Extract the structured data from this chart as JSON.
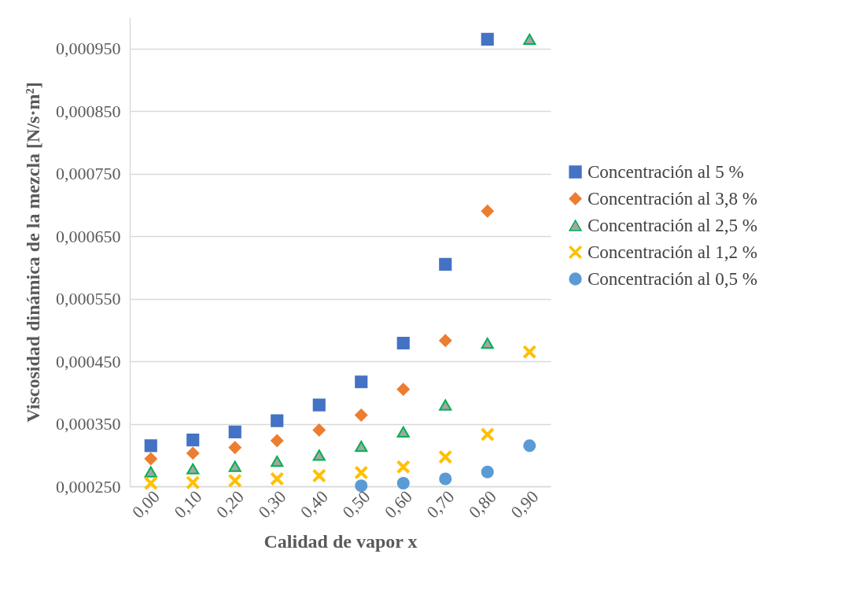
{
  "chart_data": {
    "type": "scatter",
    "xlabel": "Calidad de vapor x",
    "ylabel": "Viscosidad dinámica de la mezcla [N/s·m²]",
    "categories": [
      "0,00",
      "0,10",
      "0,20",
      "0,30",
      "0,40",
      "0,50",
      "0,60",
      "0,70",
      "0,80",
      "0,90"
    ],
    "series": [
      {
        "name": "Concentración al 5 %",
        "color": "#4472c4",
        "marker": "square",
        "values": [
          0.000315,
          0.000324,
          0.000337,
          0.000355,
          0.00038,
          0.000417,
          0.000479,
          0.000605,
          0.000965,
          null
        ]
      },
      {
        "name": "Concentración al 3,8 %",
        "color": "#ed7d31",
        "marker": "diamond",
        "values": [
          0.000294,
          0.000303,
          0.000312,
          0.000323,
          0.00034,
          0.000364,
          0.000405,
          0.000483,
          0.00069,
          null
        ]
      },
      {
        "name": "Concentración al 2,5 %",
        "color": "#a5a5a5",
        "marker": "triangle",
        "values": [
          0.000273,
          0.000278,
          0.000282,
          0.00029,
          0.0003,
          0.000314,
          0.000337,
          0.00038,
          0.000479,
          0.000965
        ]
      },
      {
        "name": "Concentración al 1,2 %",
        "color": "#ffc000",
        "marker": "cross",
        "values": [
          0.000255,
          0.000256,
          0.000259,
          0.000262,
          0.000267,
          0.000272,
          0.000281,
          0.000297,
          0.000333,
          0.000465
        ]
      },
      {
        "name": "Concentración al 0,5 %",
        "color": "#5b9bd5",
        "marker": "circle",
        "values": [
          null,
          null,
          null,
          null,
          null,
          0.000251,
          0.000255,
          0.000262,
          0.000273,
          0.000315
        ]
      }
    ],
    "ylim": [
      0.00025,
      0.001
    ],
    "yticks": [
      {
        "value": 0.00025,
        "label": "0,000250"
      },
      {
        "value": 0.00035,
        "label": "0,000350"
      },
      {
        "value": 0.00045,
        "label": "0,000450"
      },
      {
        "value": 0.00055,
        "label": "0,000550"
      },
      {
        "value": 0.00065,
        "label": "0,000650"
      },
      {
        "value": 0.00075,
        "label": "0,000750"
      },
      {
        "value": 0.00085,
        "label": "0,000850"
      },
      {
        "value": 0.00095,
        "label": "0,000950"
      }
    ],
    "grid": "y",
    "legend": "right"
  }
}
